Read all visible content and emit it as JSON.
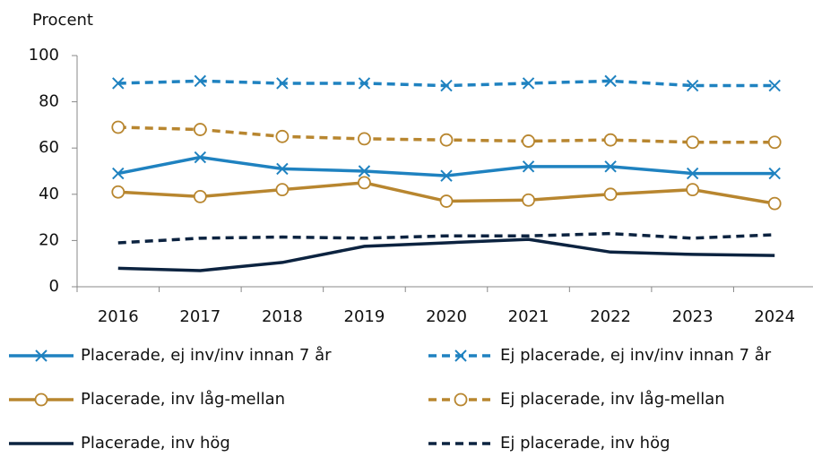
{
  "chart_data": {
    "type": "line",
    "y_label": "Procent",
    "categories": [
      "2016",
      "2017",
      "2018",
      "2019",
      "2020",
      "2021",
      "2022",
      "2023",
      "2024"
    ],
    "ylim": [
      0,
      100
    ],
    "yticks": [
      0,
      20,
      40,
      60,
      80,
      100
    ],
    "series": [
      {
        "name": "Placerade, ej inv/inv innan 7 år",
        "color": "#1f82c0",
        "dashed": false,
        "marker": "x",
        "values": [
          49,
          56,
          51,
          50,
          48,
          52,
          52,
          49,
          49
        ]
      },
      {
        "name": "Ej placerade, ej inv/inv innan 7 år",
        "color": "#1f82c0",
        "dashed": true,
        "marker": "x",
        "values": [
          88,
          89,
          88,
          88,
          87,
          88,
          89,
          87,
          87
        ]
      },
      {
        "name": "Placerade, inv låg-mellan",
        "color": "#b8862f",
        "dashed": false,
        "marker": "o",
        "values": [
          41,
          39,
          42,
          45,
          37,
          37.5,
          40,
          42,
          36
        ]
      },
      {
        "name": "Ej placerade, inv låg-mellan",
        "color": "#b8862f",
        "dashed": true,
        "marker": "o",
        "values": [
          69,
          68,
          65,
          64,
          63.5,
          63,
          63.5,
          62.5,
          62.5
        ]
      },
      {
        "name": "Placerade, inv hög",
        "color": "#0c2340",
        "dashed": false,
        "marker": "none",
        "values": [
          8,
          7,
          10.5,
          17.5,
          19,
          20.5,
          15,
          14,
          13.5
        ]
      },
      {
        "name": "Ej placerade, inv hög",
        "color": "#0c2340",
        "dashed": true,
        "marker": "none",
        "values": [
          19,
          21,
          21.5,
          21,
          22,
          22,
          23,
          21,
          22.5
        ]
      }
    ]
  }
}
